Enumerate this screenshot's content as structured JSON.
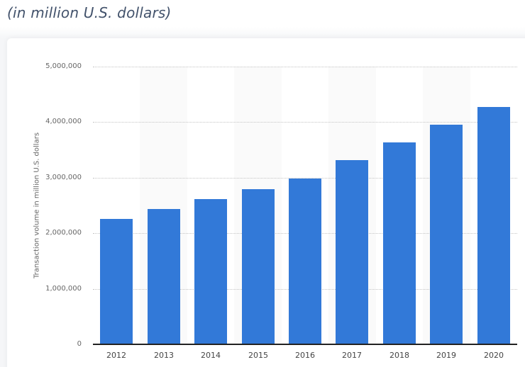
{
  "header": {
    "subtitle": "(in million U.S. dollars)"
  },
  "colors": {
    "bar": "#3279d8",
    "band": "#fafafa",
    "gridline": "#c4c4c4",
    "baseline": "#222222",
    "subtitle": "#42526b"
  },
  "chart_data": {
    "type": "bar",
    "title": "",
    "subtitle": "(in million U.S. dollars)",
    "xlabel": "",
    "ylabel": "Transaction volume in million U.S. dollars",
    "categories": [
      "2012",
      "2013",
      "2014",
      "2015",
      "2016",
      "2017",
      "2018",
      "2019",
      "2020"
    ],
    "values": [
      2258000,
      2436000,
      2615000,
      2793000,
      2985000,
      3316000,
      3635000,
      3954000,
      4273000
    ],
    "series": [
      {
        "name": "Transaction volume",
        "values": [
          2258000,
          2436000,
          2615000,
          2793000,
          2985000,
          3316000,
          3635000,
          3954000,
          4273000
        ]
      }
    ],
    "ylim": [
      0,
      5000000
    ],
    "yticks": [
      0,
      1000000,
      2000000,
      3000000,
      4000000,
      5000000
    ],
    "ytick_labels": [
      "0",
      "1,000,000",
      "2,000,000",
      "3,000,000",
      "4,000,000",
      "5,000,000"
    ],
    "grid": true,
    "legend": null
  }
}
